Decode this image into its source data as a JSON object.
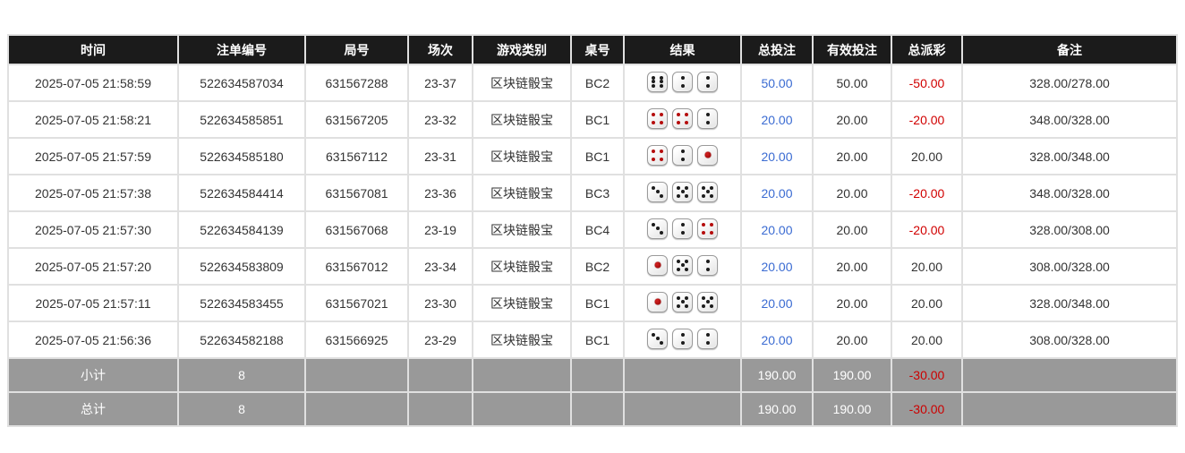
{
  "table": {
    "headers": [
      "时间",
      "注单编号",
      "局号",
      "场次",
      "游戏类别",
      "桌号",
      "结果",
      "总投注",
      "有效投注",
      "总派彩",
      "备注"
    ],
    "rows": [
      {
        "time": "2025-07-05 21:58:59",
        "bet_id": "522634587034",
        "round_id": "631567288",
        "session": "23-37",
        "game_type": "区块链骰宝",
        "table_no": "BC2",
        "dice": [
          6,
          2,
          2
        ],
        "total_bet": "50.00",
        "valid_bet": "50.00",
        "payout": "-50.00",
        "remark": "328.00/278.00"
      },
      {
        "time": "2025-07-05 21:58:21",
        "bet_id": "522634585851",
        "round_id": "631567205",
        "session": "23-32",
        "game_type": "区块链骰宝",
        "table_no": "BC1",
        "dice": [
          4,
          4,
          2
        ],
        "total_bet": "20.00",
        "valid_bet": "20.00",
        "payout": "-20.00",
        "remark": "348.00/328.00"
      },
      {
        "time": "2025-07-05 21:57:59",
        "bet_id": "522634585180",
        "round_id": "631567112",
        "session": "23-31",
        "game_type": "区块链骰宝",
        "table_no": "BC1",
        "dice": [
          4,
          2,
          1
        ],
        "total_bet": "20.00",
        "valid_bet": "20.00",
        "payout": "20.00",
        "remark": "328.00/348.00"
      },
      {
        "time": "2025-07-05 21:57:38",
        "bet_id": "522634584414",
        "round_id": "631567081",
        "session": "23-36",
        "game_type": "区块链骰宝",
        "table_no": "BC3",
        "dice": [
          3,
          5,
          5
        ],
        "total_bet": "20.00",
        "valid_bet": "20.00",
        "payout": "-20.00",
        "remark": "348.00/328.00"
      },
      {
        "time": "2025-07-05 21:57:30",
        "bet_id": "522634584139",
        "round_id": "631567068",
        "session": "23-19",
        "game_type": "区块链骰宝",
        "table_no": "BC4",
        "dice": [
          3,
          2,
          4
        ],
        "total_bet": "20.00",
        "valid_bet": "20.00",
        "payout": "-20.00",
        "remark": "328.00/308.00"
      },
      {
        "time": "2025-07-05 21:57:20",
        "bet_id": "522634583809",
        "round_id": "631567012",
        "session": "23-34",
        "game_type": "区块链骰宝",
        "table_no": "BC2",
        "dice": [
          1,
          5,
          2
        ],
        "total_bet": "20.00",
        "valid_bet": "20.00",
        "payout": "20.00",
        "remark": "308.00/328.00"
      },
      {
        "time": "2025-07-05 21:57:11",
        "bet_id": "522634583455",
        "round_id": "631567021",
        "session": "23-30",
        "game_type": "区块链骰宝",
        "table_no": "BC1",
        "dice": [
          1,
          5,
          5
        ],
        "total_bet": "20.00",
        "valid_bet": "20.00",
        "payout": "20.00",
        "remark": "328.00/348.00"
      },
      {
        "time": "2025-07-05 21:56:36",
        "bet_id": "522634582188",
        "round_id": "631566925",
        "session": "23-29",
        "game_type": "区块链骰宝",
        "table_no": "BC1",
        "dice": [
          3,
          2,
          2
        ],
        "total_bet": "20.00",
        "valid_bet": "20.00",
        "payout": "20.00",
        "remark": "308.00/328.00"
      }
    ],
    "footer": [
      {
        "label": "小计",
        "count": "8",
        "total_bet": "190.00",
        "valid_bet": "190.00",
        "payout": "-30.00",
        "remark": ""
      },
      {
        "label": "总计",
        "count": "8",
        "total_bet": "190.00",
        "valid_bet": "190.00",
        "payout": "-30.00",
        "remark": ""
      }
    ]
  },
  "colors": {
    "header_bg": "#1b1b1b",
    "footer_bg": "#999999",
    "bet_amount_blue": "#3a6bd2",
    "negative_red": "#d10000",
    "dice_pip_black": "#1c1c1c",
    "dice_pip_red": "#b50d0d"
  }
}
